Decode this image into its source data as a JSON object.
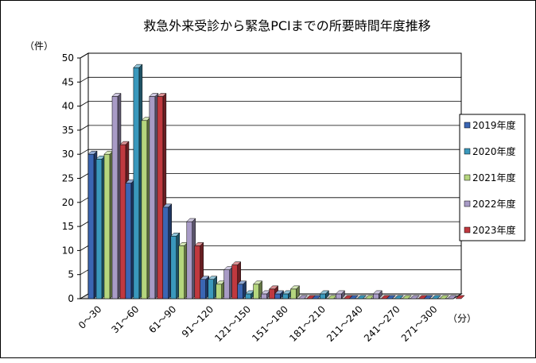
{
  "chart_data": {
    "type": "bar",
    "title": "救急外来受診から緊急PCIまでの所要時間年度推移",
    "ylabel": "（件）",
    "xlabel": "（分）",
    "ylim": [
      0,
      50
    ],
    "ytick_step": 5,
    "grid": true,
    "legend_position": "right",
    "categories": [
      "0～30",
      "31～60",
      "61～90",
      "91～120",
      "121～150",
      "151～180",
      "181～210",
      "211～240",
      "241～270",
      "271～300"
    ],
    "series": [
      {
        "name": "2019年度",
        "color": "#3B66B3",
        "values": [
          30,
          24,
          19,
          4,
          3,
          1,
          0,
          0,
          0,
          0
        ]
      },
      {
        "name": "2020年度",
        "color": "#3A98BC",
        "values": [
          29,
          48,
          13,
          4,
          1,
          1,
          1,
          0,
          0,
          0
        ]
      },
      {
        "name": "2021年度",
        "color": "#B5D67E",
        "values": [
          30,
          37,
          11,
          3,
          3,
          2,
          0,
          0,
          0,
          0
        ]
      },
      {
        "name": "2022年度",
        "color": "#A89BC6",
        "values": [
          42,
          42,
          16,
          6,
          1,
          0,
          1,
          1,
          0,
          0
        ]
      },
      {
        "name": "2023年度",
        "color": "#C0393F",
        "values": [
          32,
          42,
          11,
          7,
          2,
          0,
          0,
          0,
          0,
          0
        ]
      }
    ]
  }
}
